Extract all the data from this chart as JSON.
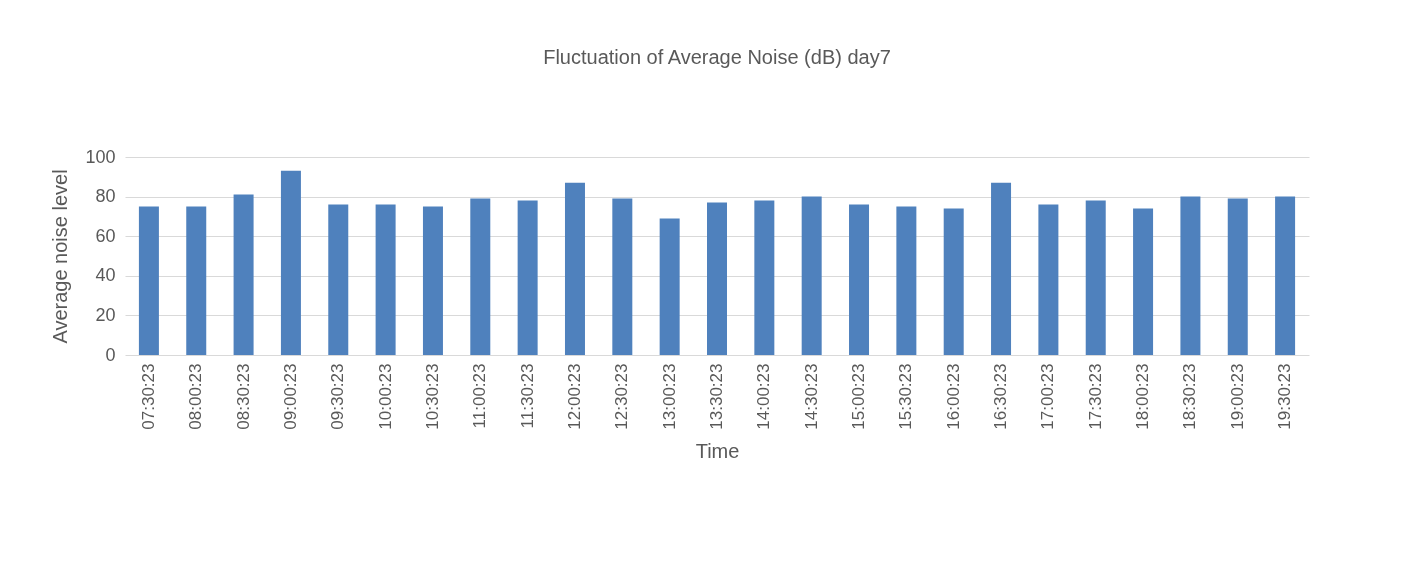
{
  "chart_data": {
    "type": "bar",
    "title": "Fluctuation of Average Noise (dB) day7",
    "xlabel": "Time",
    "ylabel": "Average noise level",
    "categories": [
      "07:30:23",
      "08:00:23",
      "08:30:23",
      "09:00:23",
      "09:30:23",
      "10:00:23",
      "10:30:23",
      "11:00:23",
      "11:30:23",
      "12:00:23",
      "12:30:23",
      "13:00:23",
      "13:30:23",
      "14:00:23",
      "14:30:23",
      "15:00:23",
      "15:30:23",
      "16:00:23",
      "16:30:23",
      "17:00:23",
      "17:30:23",
      "18:00:23",
      "18:30:23",
      "19:00:23",
      "19:30:23"
    ],
    "values": [
      75,
      75,
      81,
      93,
      76,
      76,
      75,
      79,
      78,
      87,
      79,
      69,
      77,
      78,
      80,
      76,
      75,
      74,
      87,
      76,
      78,
      74,
      80,
      79,
      80
    ],
    "color": "#4f81bd",
    "ylim": [
      0,
      100
    ],
    "yticks": [
      0,
      20,
      40,
      60,
      80,
      100
    ],
    "grid": "y"
  }
}
